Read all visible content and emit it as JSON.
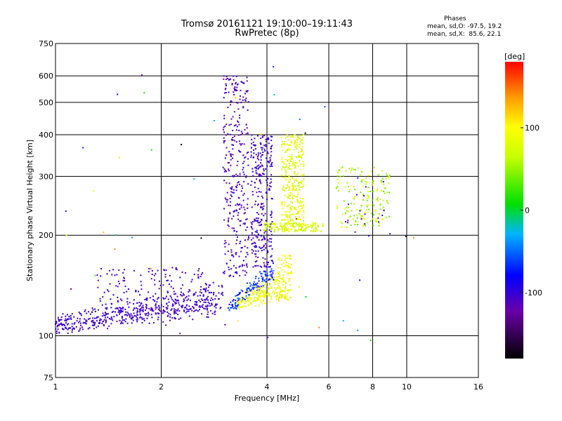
{
  "title_line1": "Tromsø 20161121 19:10:00–19:11:43",
  "title_line2": "RwPretec (8p)",
  "phases": {
    "heading": "Phases",
    "o_line": "mean, sd,O: -97.5, 19.2",
    "x_line": "mean, sd,X:  85.6, 22.1"
  },
  "chart_data": {
    "type": "scatter",
    "xlabel": "Frequency [MHz]",
    "ylabel": "Stationary phase Virtual Height [km]",
    "x_scale": "log",
    "y_scale": "log",
    "xlim": [
      1,
      16
    ],
    "ylim": [
      75,
      750
    ],
    "x_ticks": [
      1,
      2,
      4,
      6,
      8,
      10,
      16
    ],
    "x_tick_labels": [
      "1",
      "2",
      "4",
      "6",
      "8",
      "10",
      "16"
    ],
    "y_ticks": [
      75,
      100,
      200,
      300,
      400,
      500,
      600,
      750
    ],
    "y_tick_labels": [
      "75",
      "100",
      "200",
      "300",
      "400",
      "500",
      "600",
      "750"
    ],
    "grid": true,
    "colorbar": {
      "label": "[deg]",
      "range": [
        -180,
        180
      ],
      "ticks": [
        100,
        0,
        -100
      ],
      "tick_labels": [
        "100",
        "0",
        "-100"
      ]
    },
    "clusters": [
      {
        "name": "low_trace",
        "x_range": [
          1.0,
          3.0
        ],
        "y_start": [
          105,
          110
        ],
        "y_end": [
          120,
          140
        ],
        "spread": 0.06,
        "count": 520,
        "phase": [
          -115,
          -95
        ],
        "shape": "trace"
      },
      {
        "name": "low_upper_scatter",
        "x_range": [
          1.3,
          2.7
        ],
        "y_range": [
          115,
          160
        ],
        "count": 160,
        "phase": [
          -120,
          -90
        ],
        "shape": "box"
      },
      {
        "name": "col_3_3",
        "x_range": [
          3.0,
          3.55
        ],
        "y_range": [
          150,
          600
        ],
        "count": 330,
        "phase": [
          -125,
          -95
        ],
        "shape": "box"
      },
      {
        "name": "col_3_8",
        "x_range": [
          3.6,
          4.15
        ],
        "y_range": [
          160,
          400
        ],
        "count": 300,
        "phase": [
          -120,
          -90
        ],
        "shape": "box"
      },
      {
        "name": "o_trace_mid",
        "x_range": [
          3.1,
          4.2
        ],
        "y_start": [
          118,
          125
        ],
        "y_end": [
          150,
          165
        ],
        "spread": 0.04,
        "count": 140,
        "phase": [
          -95,
          -40
        ],
        "shape": "trace"
      },
      {
        "name": "x_trace",
        "x_range": [
          3.3,
          4.55
        ],
        "y_start": [
          120,
          128
        ],
        "y_end": [
          128,
          160
        ],
        "spread": 0.03,
        "count": 190,
        "phase": [
          70,
          110
        ],
        "shape": "trace"
      },
      {
        "name": "x_bend",
        "x_range": [
          4.3,
          4.7
        ],
        "y_range": [
          128,
          175
        ],
        "count": 90,
        "phase": [
          75,
          115
        ],
        "shape": "box"
      },
      {
        "name": "col_4_8",
        "x_range": [
          4.4,
          5.1
        ],
        "y_range": [
          205,
          400
        ],
        "count": 330,
        "phase": [
          60,
          110
        ],
        "shape": "box"
      },
      {
        "name": "f_layer_band",
        "x_range": [
          3.9,
          5.8
        ],
        "y_range": [
          205,
          218
        ],
        "count": 150,
        "phase": [
          55,
          95
        ],
        "shape": "box"
      },
      {
        "name": "far_clusters",
        "x_range": [
          6.3,
          9.0
        ],
        "y_range": [
          210,
          320
        ],
        "count": 170,
        "phase": [
          30,
          90
        ],
        "shape": "box"
      },
      {
        "name": "far_blue_points",
        "x_range": [
          6.5,
          9.0
        ],
        "y_range": [
          190,
          300
        ],
        "count": 20,
        "phase": [
          -120,
          -95
        ],
        "shape": "box"
      },
      {
        "name": "isolated_noise",
        "x_range": [
          1.05,
          11.0
        ],
        "y_range": [
          90,
          650
        ],
        "count": 45,
        "phase": [
          -180,
          180
        ],
        "shape": "box"
      }
    ]
  }
}
